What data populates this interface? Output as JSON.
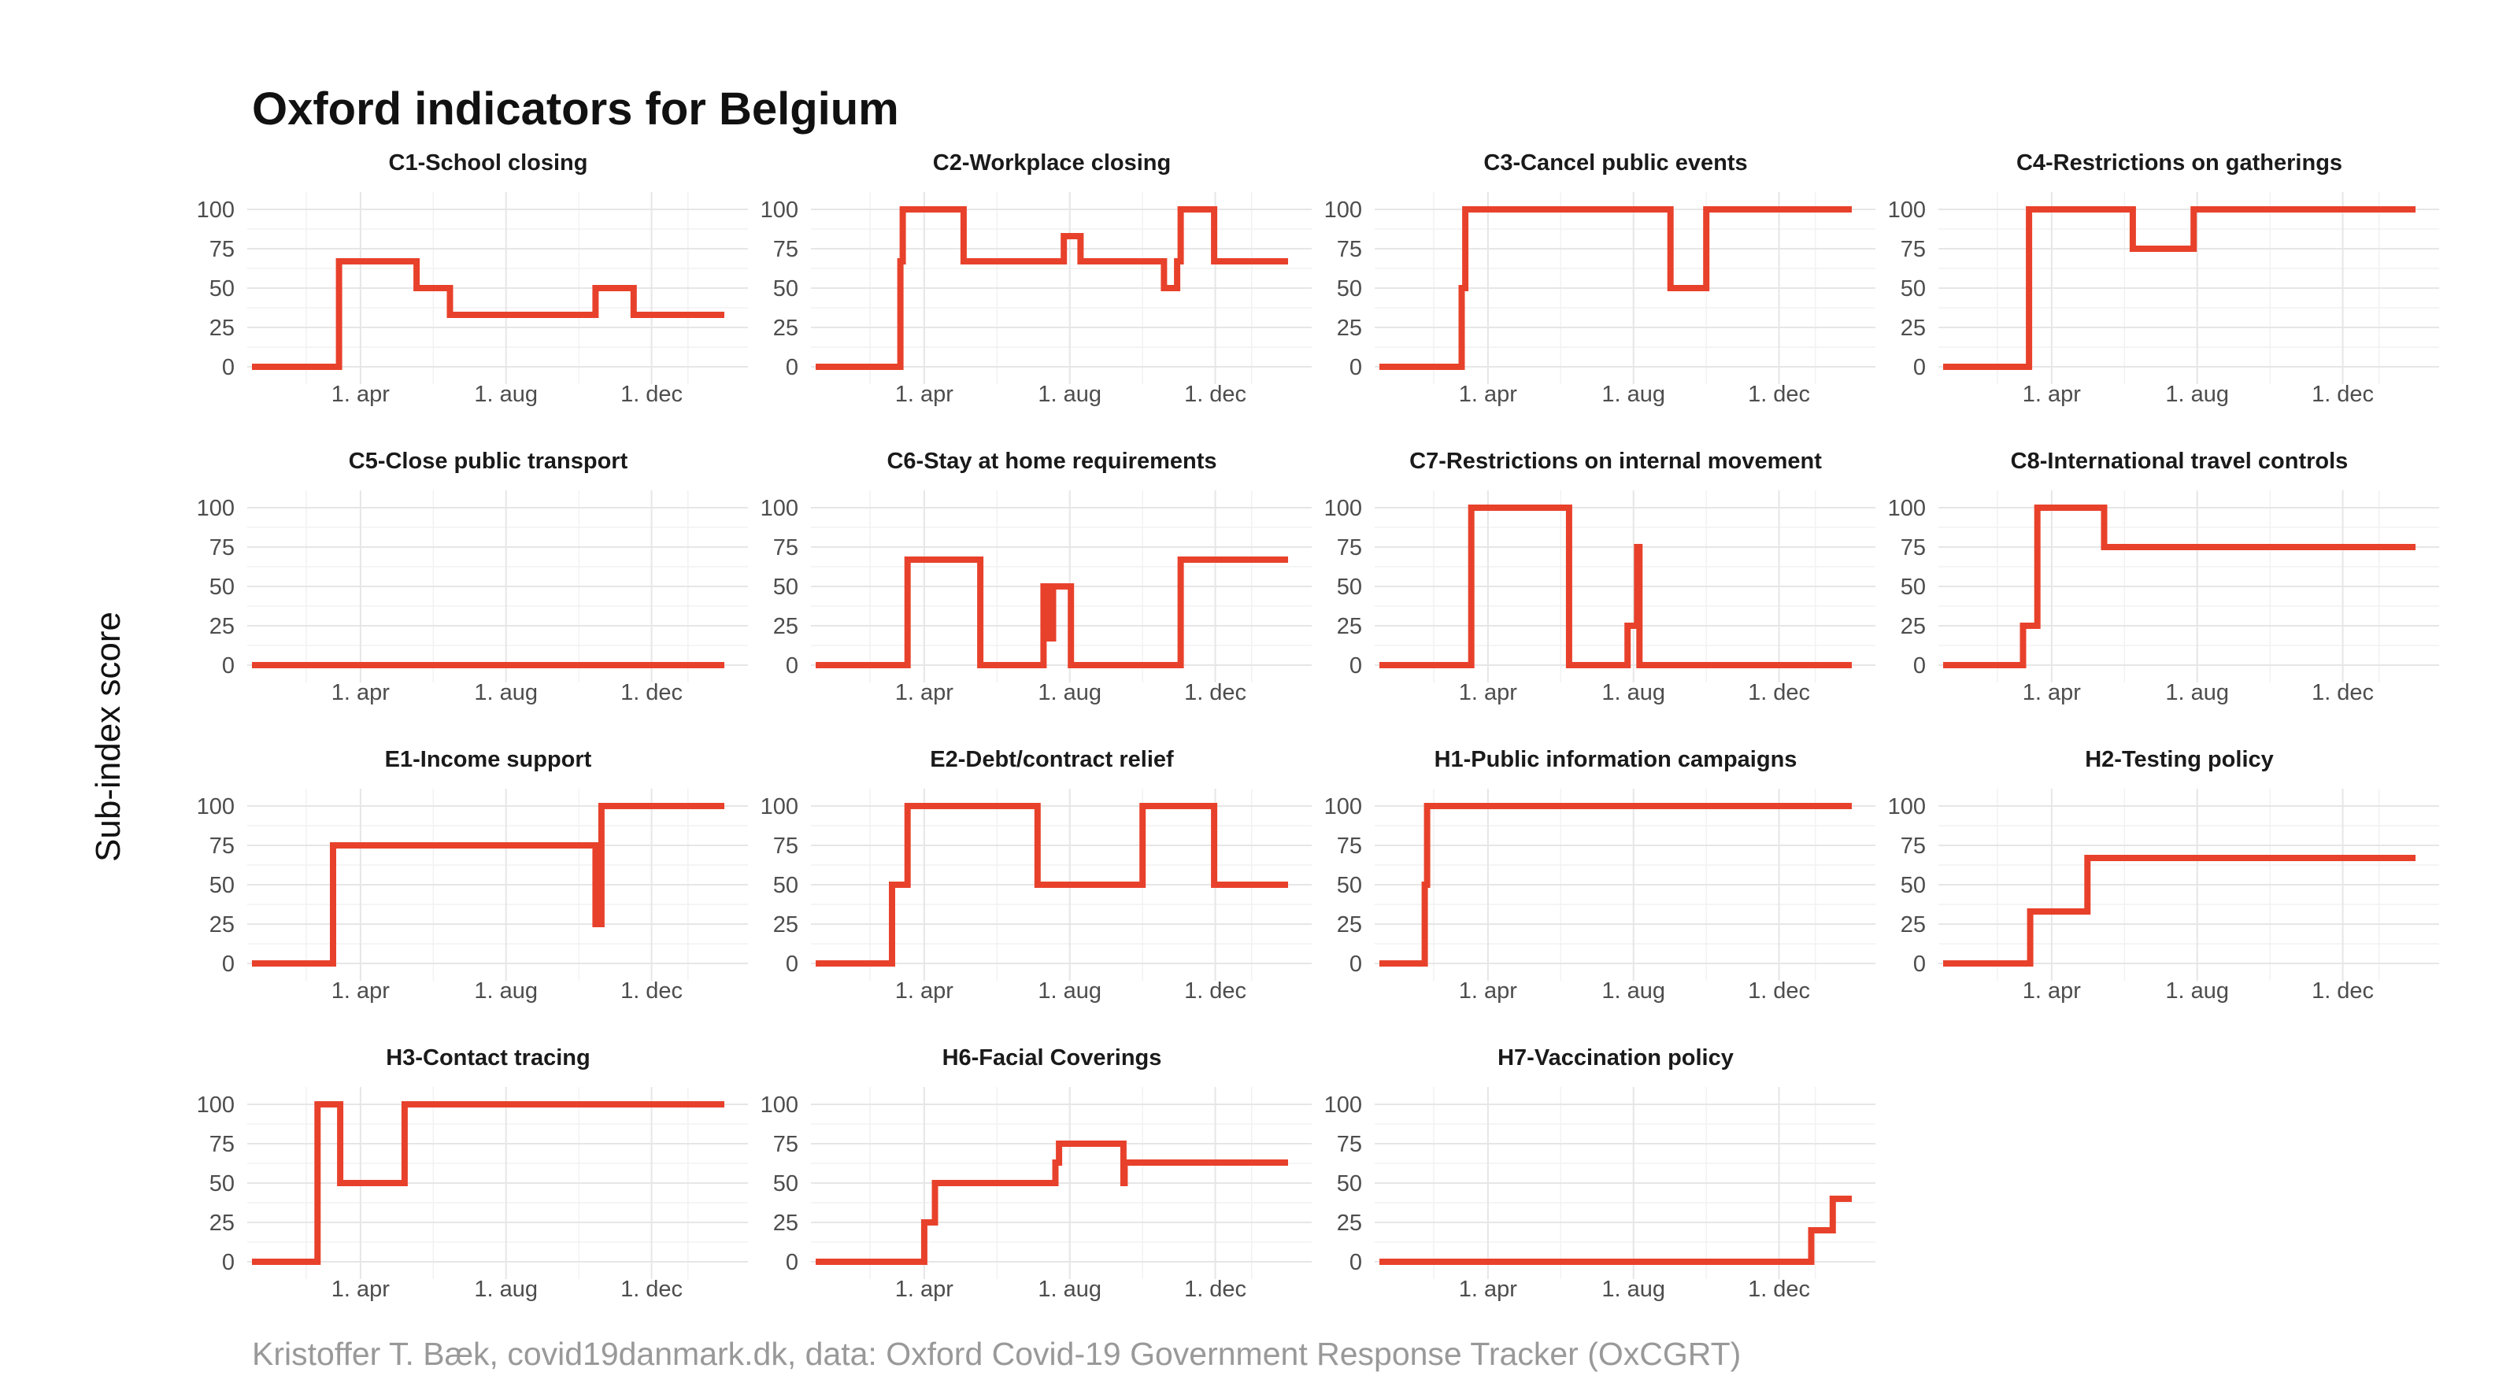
{
  "colors": {
    "series": "#E8412B",
    "background": "#ffffff"
  },
  "title": "Oxford indicators for Belgium",
  "ylabel": "Sub-index score",
  "caption": "Kristoffer T. Bæk, covid19danmark.dk, data: Oxford Covid-19 Government Response Tracker (OxCGRT)",
  "chart_data": {
    "type": "line",
    "layout": "small-multiples",
    "ylim": [
      0,
      100
    ],
    "yticks": [
      0,
      25,
      50,
      75,
      100
    ],
    "xlim": [
      "2020-01-01",
      "2021-01-31"
    ],
    "xticks": [
      {
        "date": "2020-04-01",
        "label": "1. apr"
      },
      {
        "date": "2020-08-01",
        "label": "1. aug"
      },
      {
        "date": "2020-12-01",
        "label": "1. dec"
      }
    ],
    "grid": true,
    "step": true,
    "panels": [
      {
        "name": "C1-School closing",
        "x": [
          "2020-01-01",
          "2020-03-14",
          "2020-05-18",
          "2020-06-15",
          "2020-10-15",
          "2020-10-26",
          "2020-11-16",
          "2021-01-31"
        ],
        "y": [
          0,
          67,
          50,
          33,
          50,
          50,
          33,
          33
        ]
      },
      {
        "name": "C2-Workplace closing",
        "x": [
          "2020-01-01",
          "2020-03-12",
          "2020-03-14",
          "2020-05-04",
          "2020-07-27",
          "2020-08-10",
          "2020-10-19",
          "2020-10-30",
          "2020-11-02",
          "2020-11-30",
          "2021-01-31"
        ],
        "y": [
          0,
          67,
          100,
          67,
          83,
          67,
          50,
          67,
          100,
          67,
          67
        ]
      },
      {
        "name": "C3-Cancel public events",
        "x": [
          "2020-01-01",
          "2020-03-10",
          "2020-03-13",
          "2020-09-01",
          "2020-10-01",
          "2021-01-31"
        ],
        "y": [
          0,
          50,
          100,
          50,
          100,
          100
        ]
      },
      {
        "name": "C4-Restrictions on gatherings",
        "x": [
          "2020-01-01",
          "2020-03-13",
          "2020-06-08",
          "2020-07-29",
          "2021-01-31"
        ],
        "y": [
          0,
          100,
          75,
          100,
          100
        ]
      },
      {
        "name": "C5-Close public transport",
        "x": [
          "2020-01-01",
          "2021-01-31"
        ],
        "y": [
          0,
          0
        ]
      },
      {
        "name": "C6-Stay at home requirements",
        "x": [
          "2020-01-01",
          "2020-03-18",
          "2020-05-18",
          "2020-07-10",
          "2020-07-14",
          "2020-07-18",
          "2020-07-25",
          "2020-08-02",
          "2020-09-01",
          "2020-11-02",
          "2021-01-31"
        ],
        "y": [
          0,
          67,
          0,
          50,
          17,
          50,
          50,
          0,
          0,
          67,
          67
        ]
      },
      {
        "name": "C7-Restrictions on internal movement",
        "x": [
          "2020-01-01",
          "2020-03-13",
          "2020-03-18",
          "2020-06-08",
          "2020-07-27",
          "2020-08-02",
          "2020-08-04",
          "2020-08-06",
          "2021-01-31"
        ],
        "y": [
          0,
          0,
          100,
          0,
          25,
          25,
          75,
          0,
          0
        ]
      },
      {
        "name": "C8-International travel controls",
        "x": [
          "2020-01-01",
          "2020-03-08",
          "2020-03-20",
          "2020-05-15",
          "2021-01-31"
        ],
        "y": [
          0,
          25,
          100,
          75,
          75
        ]
      },
      {
        "name": "E1-Income support",
        "x": [
          "2020-01-01",
          "2020-03-09",
          "2020-10-15",
          "2020-10-20",
          "2021-01-31"
        ],
        "y": [
          0,
          75,
          25,
          100,
          100
        ]
      },
      {
        "name": "E2-Debt/contract relief",
        "x": [
          "2020-01-01",
          "2020-03-05",
          "2020-03-18",
          "2020-07-05",
          "2020-10-01",
          "2020-11-30",
          "2021-01-31"
        ],
        "y": [
          0,
          50,
          100,
          50,
          100,
          50,
          50
        ]
      },
      {
        "name": "H1-Public information campaigns",
        "x": [
          "2020-01-01",
          "2020-02-08",
          "2020-02-10",
          "2021-01-31"
        ],
        "y": [
          0,
          50,
          100,
          100
        ]
      },
      {
        "name": "H2-Testing policy",
        "x": [
          "2020-01-01",
          "2020-03-14",
          "2020-05-01",
          "2021-01-31"
        ],
        "y": [
          0,
          33,
          67,
          67
        ]
      },
      {
        "name": "H3-Contact tracing",
        "x": [
          "2020-01-01",
          "2020-02-25",
          "2020-03-15",
          "2020-05-08",
          "2021-01-31"
        ],
        "y": [
          0,
          100,
          50,
          100,
          100
        ]
      },
      {
        "name": "H6-Facial Coverings",
        "x": [
          "2020-01-01",
          "2020-04-01",
          "2020-04-10",
          "2020-07-20",
          "2020-07-23",
          "2020-09-15",
          "2020-09-16",
          "2021-01-31"
        ],
        "y": [
          0,
          25,
          50,
          63,
          75,
          50,
          63,
          63
        ]
      },
      {
        "name": "H7-Vaccination policy",
        "x": [
          "2020-01-01",
          "2020-12-28",
          "2021-01-15",
          "2021-01-31"
        ],
        "y": [
          0,
          20,
          40,
          40
        ]
      }
    ]
  }
}
